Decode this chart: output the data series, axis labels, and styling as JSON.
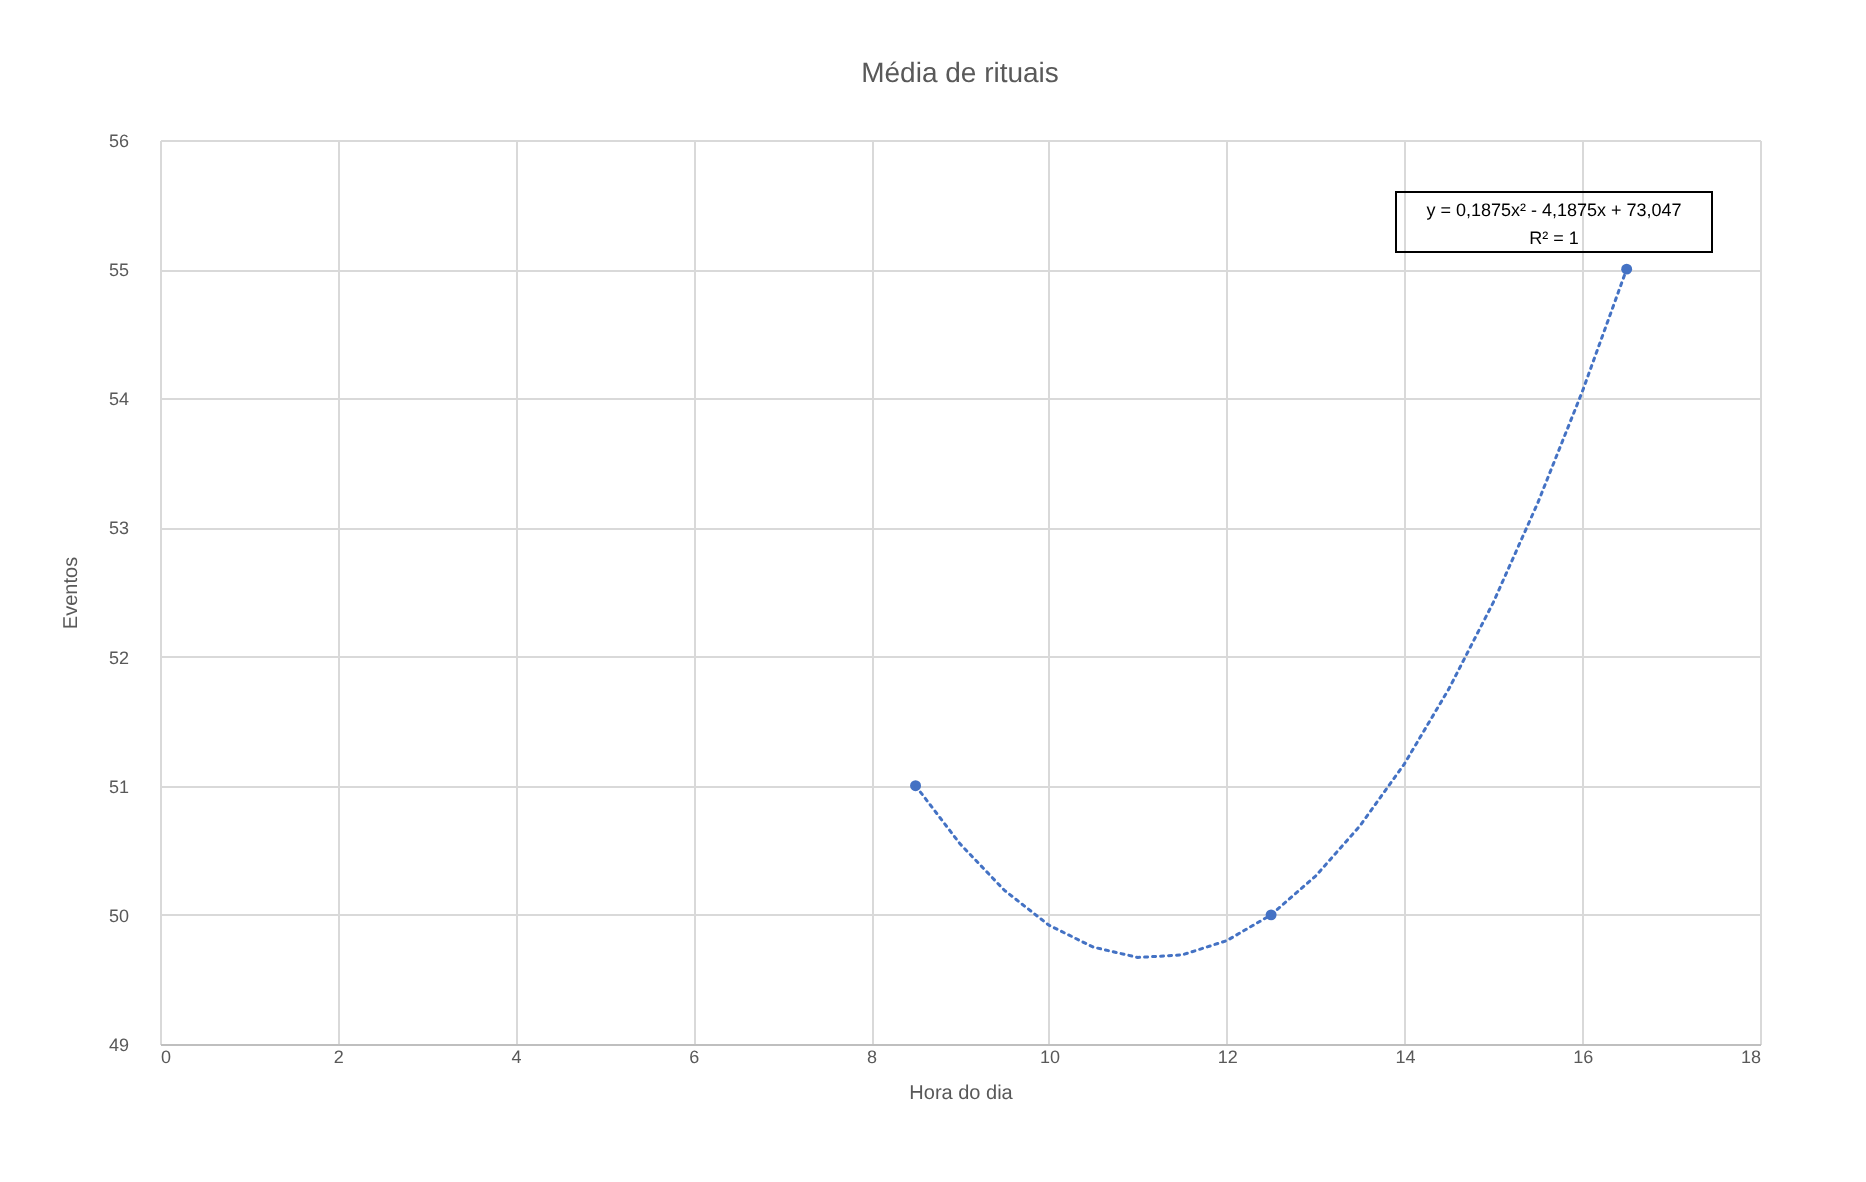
{
  "chart_data": {
    "type": "scatter",
    "title": "Média de rituais",
    "xlabel": "Hora do dia",
    "ylabel": "Eventos",
    "xlim": [
      0,
      18
    ],
    "xticks": [
      0,
      2,
      4,
      6,
      8,
      10,
      12,
      14,
      16,
      18
    ],
    "ylim": [
      49,
      56
    ],
    "yticks": [
      49,
      50,
      51,
      52,
      53,
      54,
      55,
      56
    ],
    "grid": true,
    "marker": "circle",
    "annotations": [
      "y = 0,1875x² - 4,1875x + 73,047",
      "R² = 1"
    ],
    "series": [
      {
        "type": "scatter",
        "color": "#4472c4",
        "x": [
          8.5,
          12.5,
          16.5
        ],
        "values": [
          51,
          50,
          55
        ]
      },
      {
        "type": "line",
        "color": "#4472c4",
        "line_style": "dotted",
        "marker": "none",
        "x": [
          8.5,
          9,
          9.5,
          10,
          10.5,
          11,
          11.5,
          12,
          12.5,
          13,
          13.5,
          14,
          14.5,
          15,
          15.5,
          16,
          16.5
        ],
        "values": [
          51.0,
          50.55,
          50.19,
          49.92,
          49.75,
          49.67,
          49.69,
          49.8,
          50.0,
          50.3,
          50.69,
          51.17,
          51.75,
          52.42,
          53.19,
          54.05,
          55.0
        ]
      }
    ]
  }
}
